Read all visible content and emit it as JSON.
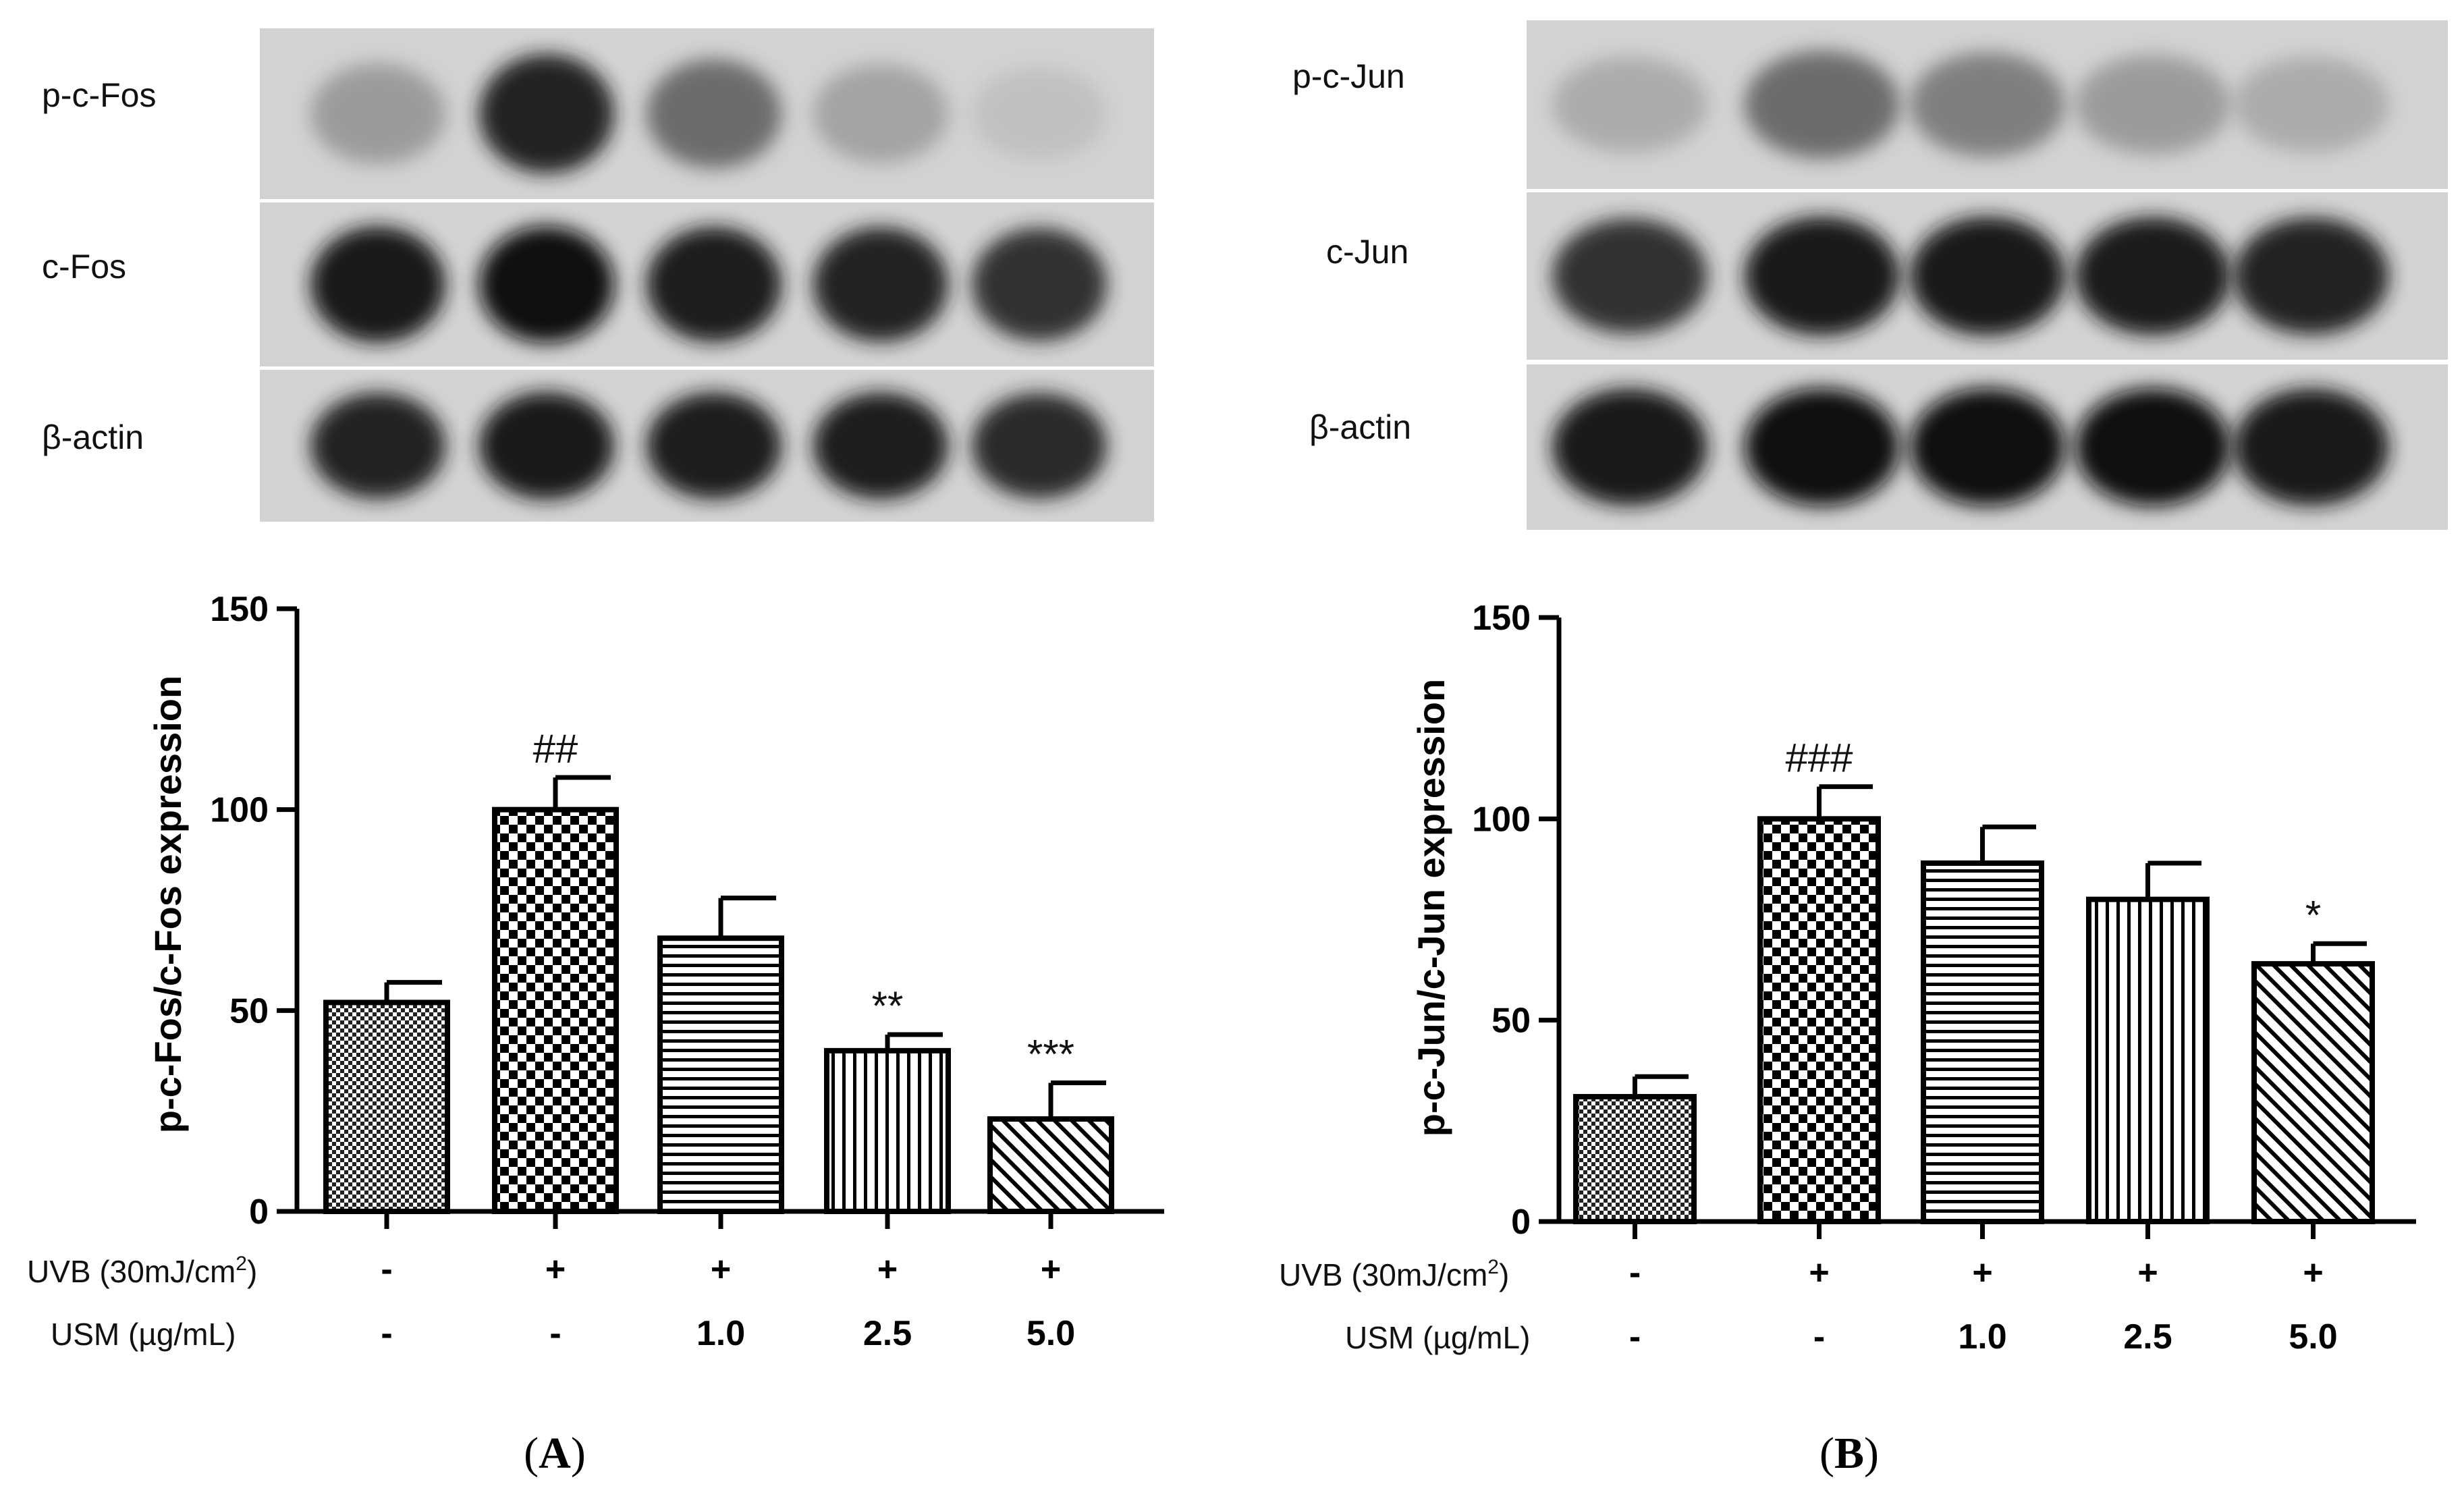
{
  "panels": [
    {
      "letter": "A",
      "blot": {
        "rows": [
          {
            "label": "p-c-Fos",
            "intensities": [
              0.35,
              0.9,
              0.6,
              0.3,
              0.1
            ]
          },
          {
            "label": "c-Fos",
            "intensities": [
              0.95,
              0.97,
              0.92,
              0.9,
              0.85
            ]
          },
          {
            "label": "β-actin",
            "intensities": [
              0.9,
              0.95,
              0.92,
              0.92,
              0.88
            ]
          }
        ]
      },
      "chart_data": {
        "type": "bar",
        "ylabel": "p-c-Fos/c-Fos expression",
        "ylim": [
          0,
          150
        ],
        "yticks": [
          "0",
          "50",
          "100",
          "150"
        ],
        "values": [
          52,
          100,
          68,
          40,
          23
        ],
        "errors": [
          5,
          8,
          10,
          4,
          9
        ],
        "patterns": [
          "check-fine",
          "check-coarse",
          "horizontal",
          "vertical",
          "diagonal"
        ],
        "annotations": [
          "",
          "##",
          "",
          "**",
          "***"
        ]
      },
      "conditions": {
        "uvb_label": "UVB (30mJ/cm",
        "uvb_sup": "2",
        "uvb_close": ")",
        "uvb": [
          "-",
          "+",
          "+",
          "+",
          "+"
        ],
        "usm_label": "USM (µg/mL)",
        "usm": [
          "-",
          "-",
          "1.0",
          "2.5",
          "5.0"
        ]
      }
    },
    {
      "letter": "B",
      "blot": {
        "rows": [
          {
            "label": "p-c-Jun",
            "intensities": [
              0.25,
              0.6,
              0.5,
              0.35,
              0.25
            ]
          },
          {
            "label": "c-Jun",
            "intensities": [
              0.85,
              0.95,
              0.95,
              0.93,
              0.9
            ]
          },
          {
            "label": "β-actin",
            "intensities": [
              0.95,
              0.97,
              0.97,
              0.97,
              0.95
            ]
          }
        ]
      },
      "chart_data": {
        "type": "bar",
        "ylabel": "p-c-Jun/c-Jun expression",
        "ylim": [
          0,
          150
        ],
        "yticks": [
          "0",
          "50",
          "100",
          "150"
        ],
        "values": [
          31,
          100,
          89,
          80,
          64
        ],
        "errors": [
          5,
          8,
          9,
          9,
          5
        ],
        "patterns": [
          "check-fine",
          "check-coarse",
          "horizontal",
          "vertical",
          "diagonal"
        ],
        "annotations": [
          "",
          "###",
          "",
          "",
          "*"
        ]
      },
      "conditions": {
        "uvb_label": "UVB (30mJ/cm",
        "uvb_sup": "2",
        "uvb_close": ")",
        "uvb": [
          "-",
          "+",
          "+",
          "+",
          "+"
        ],
        "usm_label": "USM (µg/mL)",
        "usm": [
          "-",
          "-",
          "1.0",
          "2.5",
          "5.0"
        ]
      }
    }
  ]
}
